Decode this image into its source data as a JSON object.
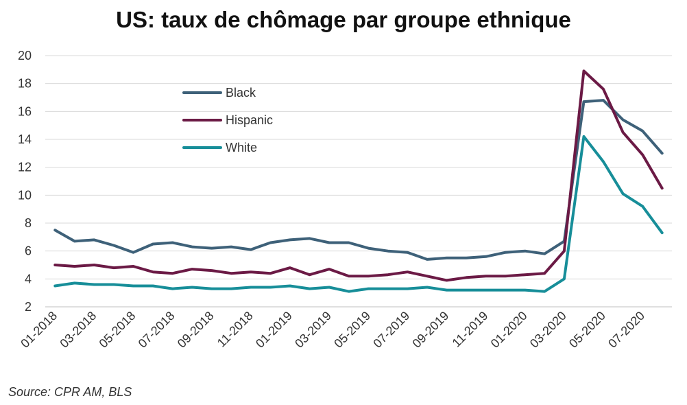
{
  "title": "US: taux de chômage par groupe ethnique",
  "source": "Source: CPR AM, BLS",
  "colors": {
    "Black": "#3e6179",
    "Hispanic": "#6b1a45",
    "White": "#178e99",
    "grid": "#d9d9d9",
    "axis": "#bfbfbf"
  },
  "chart_data": {
    "type": "line",
    "title": "US: taux de chômage par groupe ethnique",
    "xlabel": "",
    "ylabel": "",
    "ylim": [
      2,
      20
    ],
    "yticks": [
      2,
      4,
      6,
      8,
      10,
      12,
      14,
      16,
      18,
      20
    ],
    "grid": true,
    "legend_position": "top-left inside",
    "x": [
      "01-2018",
      "02-2018",
      "03-2018",
      "04-2018",
      "05-2018",
      "06-2018",
      "07-2018",
      "08-2018",
      "09-2018",
      "10-2018",
      "11-2018",
      "12-2018",
      "01-2019",
      "02-2019",
      "03-2019",
      "04-2019",
      "05-2019",
      "06-2019",
      "07-2019",
      "08-2019",
      "09-2019",
      "10-2019",
      "11-2019",
      "12-2019",
      "01-2020",
      "02-2020",
      "03-2020",
      "04-2020",
      "05-2020",
      "06-2020",
      "07-2020",
      "08-2020"
    ],
    "xtick_labels": [
      "01-2018",
      "03-2018",
      "05-2018",
      "07-2018",
      "09-2018",
      "11-2018",
      "01-2019",
      "03-2019",
      "05-2019",
      "07-2019",
      "09-2019",
      "11-2019",
      "01-2020",
      "03-2020",
      "05-2020",
      "07-2020"
    ],
    "series": [
      {
        "name": "Black",
        "values": [
          7.5,
          6.7,
          6.8,
          6.4,
          5.9,
          6.5,
          6.6,
          6.3,
          6.2,
          6.3,
          6.1,
          6.6,
          6.8,
          6.9,
          6.6,
          6.6,
          6.2,
          6.0,
          5.9,
          5.4,
          5.5,
          5.5,
          5.6,
          5.9,
          6.0,
          5.8,
          6.7,
          16.7,
          16.8,
          15.4,
          14.6,
          13.0
        ]
      },
      {
        "name": "Hispanic",
        "values": [
          5.0,
          4.9,
          5.0,
          4.8,
          4.9,
          4.5,
          4.4,
          4.7,
          4.6,
          4.4,
          4.5,
          4.4,
          4.8,
          4.3,
          4.7,
          4.2,
          4.2,
          4.3,
          4.5,
          4.2,
          3.9,
          4.1,
          4.2,
          4.2,
          4.3,
          4.4,
          6.0,
          18.9,
          17.6,
          14.5,
          12.9,
          10.5
        ]
      },
      {
        "name": "White",
        "values": [
          3.5,
          3.7,
          3.6,
          3.6,
          3.5,
          3.5,
          3.3,
          3.4,
          3.3,
          3.3,
          3.4,
          3.4,
          3.5,
          3.3,
          3.4,
          3.1,
          3.3,
          3.3,
          3.3,
          3.4,
          3.2,
          3.2,
          3.2,
          3.2,
          3.2,
          3.1,
          4.0,
          14.2,
          12.4,
          10.1,
          9.2,
          7.3
        ]
      }
    ]
  }
}
